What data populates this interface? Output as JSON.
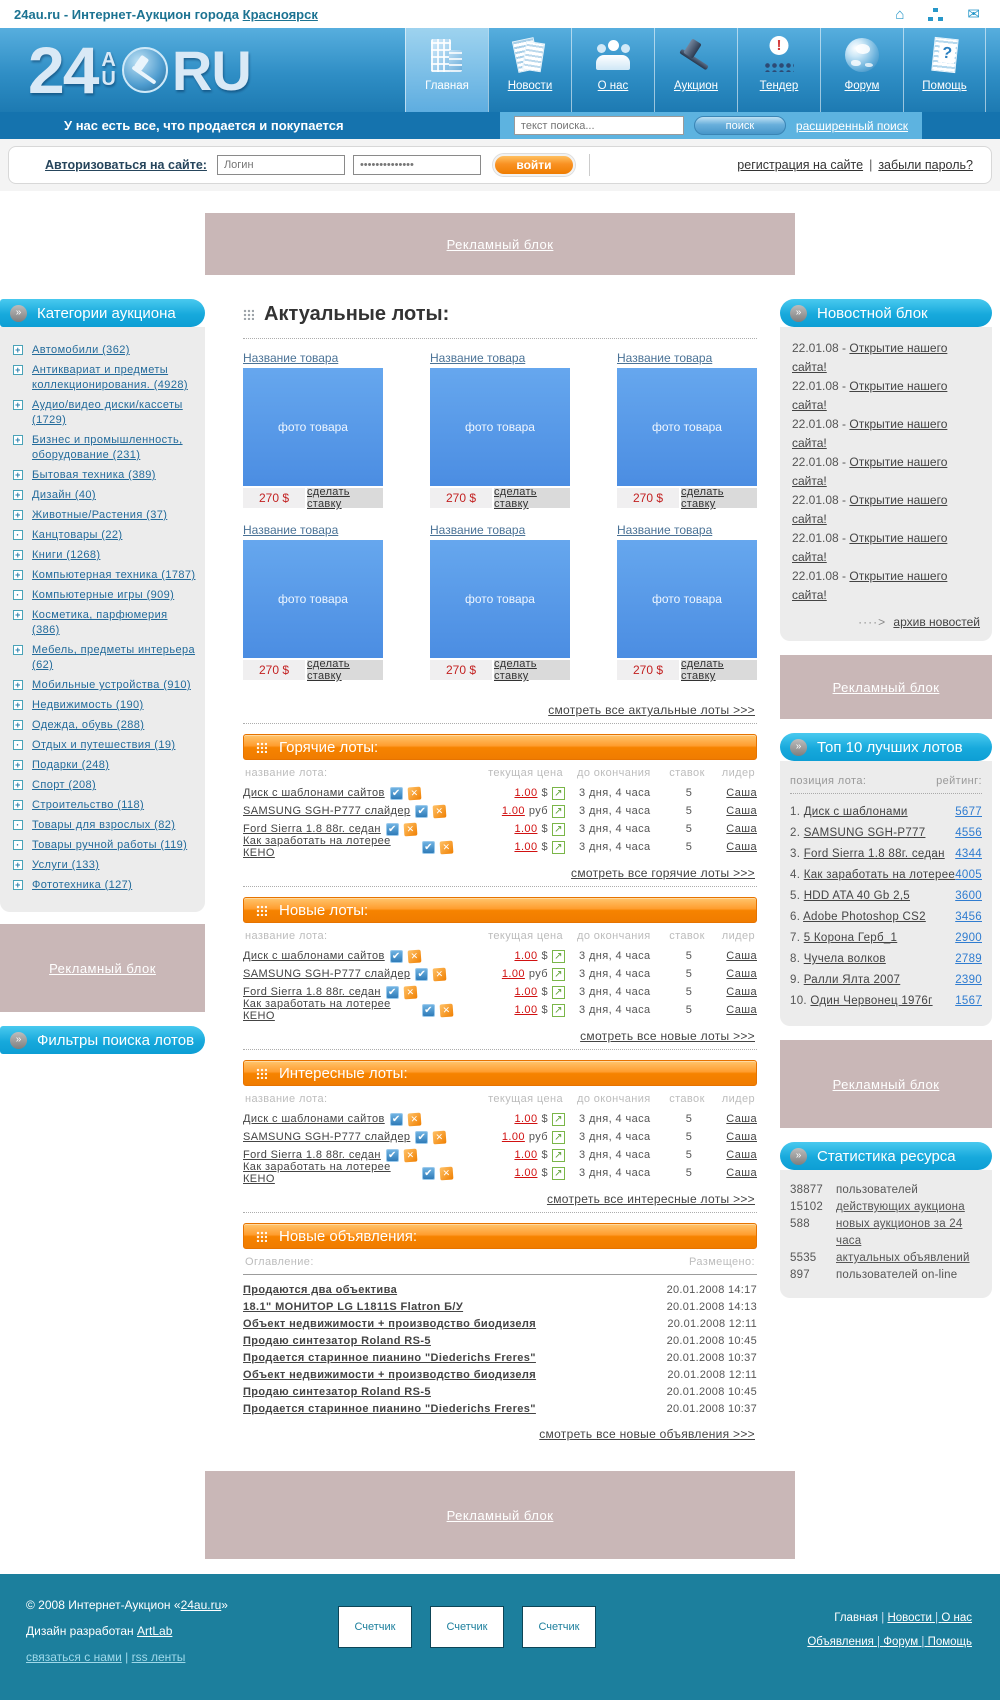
{
  "topbar": {
    "title_prefix": "24au.ru - Интернет-Аукцион города ",
    "title_link": "Красноярск"
  },
  "header": {
    "logo": {
      "big": "24",
      "small_top": "A",
      "small_bottom": "U",
      "suffix": "RU"
    },
    "nav": [
      {
        "label": "Главная",
        "icon": "building",
        "active": true
      },
      {
        "label": "Новости",
        "icon": "news"
      },
      {
        "label": "О нас",
        "icon": "people"
      },
      {
        "label": "Аукцион",
        "icon": "gavel"
      },
      {
        "label": "Тендер",
        "icon": "tender"
      },
      {
        "label": "Форум",
        "icon": "globe"
      },
      {
        "label": "Помощь",
        "icon": "help"
      }
    ],
    "tagline": "У нас есть все, что продается и покупается",
    "search": {
      "placeholder": "текст поиска...",
      "button": "поиск",
      "advanced": "расширенный поиск"
    }
  },
  "login": {
    "label": "Авторизоваться на сайте:",
    "login_placeholder": "Логин",
    "password_value": "**************",
    "submit": "войти",
    "register": "регистрация на сайте",
    "separator": "|",
    "forgot": "забыли пароль?"
  },
  "ads": {
    "label": "Рекламный блок"
  },
  "sidebar": {
    "categories_title": "Категории аукциона",
    "categories": [
      {
        "label": "Автомобили (362)",
        "glyph": "+"
      },
      {
        "label": "Антиквариат и предметы коллекционирования. (4928)",
        "glyph": "+"
      },
      {
        "label": "Аудио/видео диски/кассеты (1729)",
        "glyph": "+"
      },
      {
        "label": "Бизнес и промышленность, оборудование (231)",
        "glyph": "+"
      },
      {
        "label": "Бытовая техника (389)",
        "glyph": "+"
      },
      {
        "label": "Дизайн (40)",
        "glyph": "+"
      },
      {
        "label": "Животные/Растения (37)",
        "glyph": "+"
      },
      {
        "label": "Канцтовары (22)",
        "glyph": "·"
      },
      {
        "label": "Книги (1268)",
        "glyph": "+"
      },
      {
        "label": "Компьютерная техника (1787)",
        "glyph": "+"
      },
      {
        "label": "Компьютерные игры (909)",
        "glyph": "·"
      },
      {
        "label": "Косметика, парфюмерия (386)",
        "glyph": "+"
      },
      {
        "label": "Мебель, предметы интерьера (62)",
        "glyph": "+"
      },
      {
        "label": "Мобильные устройства (910)",
        "glyph": "+"
      },
      {
        "label": "Недвижимость (190)",
        "glyph": "+"
      },
      {
        "label": "Одежда, обувь (288)",
        "glyph": "+"
      },
      {
        "label": "Отдых и путешествия (19)",
        "glyph": "·"
      },
      {
        "label": "Подарки (248)",
        "glyph": "+"
      },
      {
        "label": "Спорт (208)",
        "glyph": "+"
      },
      {
        "label": "Строительство (118)",
        "glyph": "+"
      },
      {
        "label": "Товары для взрослых (82)",
        "glyph": "·"
      },
      {
        "label": "Товары ручной работы (119)",
        "glyph": "·"
      },
      {
        "label": "Услуги (133)",
        "glyph": "+"
      },
      {
        "label": "Фототехника (127)",
        "glyph": "+"
      }
    ],
    "filters_title": "Фильтры поиска лотов"
  },
  "main": {
    "title": "Актуальные лоты:",
    "cards": [
      {
        "name": "Название товара",
        "photo": "фото товара",
        "price": "270 $",
        "bid": "сделать ставку"
      },
      {
        "name": "Название товара",
        "photo": "фото товара",
        "price": "270 $",
        "bid": "сделать ставку"
      },
      {
        "name": "Название товара",
        "photo": "фото товара",
        "price": "270 $",
        "bid": "сделать ставку"
      },
      {
        "name": "Название товара",
        "photo": "фото товара",
        "price": "270 $",
        "bid": "сделать ставку"
      },
      {
        "name": "Название товара",
        "photo": "фото товара",
        "price": "270 $",
        "bid": "сделать ставку"
      },
      {
        "name": "Название товара",
        "photo": "фото товара",
        "price": "270 $",
        "bid": "сделать ставку"
      }
    ],
    "view_all_actual": "смотреть все актуальные лоты >>>",
    "lot_columns": {
      "name": "название лота:",
      "price": "текущая цена",
      "time": "до окончания",
      "bids": "ставок",
      "leader": "лидер"
    },
    "tables": [
      {
        "title": "Горячие лоты:",
        "view_all": "смотреть все горячие лоты >>>",
        "rows": [
          {
            "name": "Диск с шаблонами сайтов",
            "price": "1.00",
            "currency": "$",
            "time": "3 дня, 4 часа",
            "bids": "5",
            "leader": "Саша"
          },
          {
            "name": "SAMSUNG SGH-P777 слайдер",
            "price": "1.00",
            "currency": "руб",
            "time": "3 дня, 4 часа",
            "bids": "5",
            "leader": "Саша"
          },
          {
            "name": "Ford Sierra 1.8 88г. седан",
            "price": "1.00",
            "currency": "$",
            "time": "3 дня, 4 часа",
            "bids": "5",
            "leader": "Саша"
          },
          {
            "name": "Как заработать на лотерее КЕНО",
            "price": "1.00",
            "currency": "$",
            "time": "3 дня, 4 часа",
            "bids": "5",
            "leader": "Саша"
          }
        ]
      },
      {
        "title": "Новые лоты:",
        "view_all": "смотреть все новые лоты >>>",
        "rows": [
          {
            "name": "Диск с шаблонами сайтов",
            "price": "1.00",
            "currency": "$",
            "time": "3 дня, 4 часа",
            "bids": "5",
            "leader": "Саша"
          },
          {
            "name": "SAMSUNG SGH-P777 слайдер",
            "price": "1.00",
            "currency": "руб",
            "time": "3 дня, 4 часа",
            "bids": "5",
            "leader": "Саша"
          },
          {
            "name": "Ford Sierra 1.8 88г. седан",
            "price": "1.00",
            "currency": "$",
            "time": "3 дня, 4 часа",
            "bids": "5",
            "leader": "Саша"
          },
          {
            "name": "Как заработать на лотерее КЕНО",
            "price": "1.00",
            "currency": "$",
            "time": "3 дня, 4 часа",
            "bids": "5",
            "leader": "Саша"
          }
        ]
      },
      {
        "title": "Интересные лоты:",
        "view_all": "смотреть все интересные лоты >>>",
        "rows": [
          {
            "name": "Диск с шаблонами сайтов",
            "price": "1.00",
            "currency": "$",
            "time": "3 дня, 4 часа",
            "bids": "5",
            "leader": "Саша"
          },
          {
            "name": "SAMSUNG SGH-P777 слайдер",
            "price": "1.00",
            "currency": "руб",
            "time": "3 дня, 4 часа",
            "bids": "5",
            "leader": "Саша"
          },
          {
            "name": "Ford Sierra 1.8 88г. седан",
            "price": "1.00",
            "currency": "$",
            "time": "3 дня, 4 часа",
            "bids": "5",
            "leader": "Саша"
          },
          {
            "name": "Как заработать на лотерее КЕНО",
            "price": "1.00",
            "currency": "$",
            "time": "3 дня, 4 часа",
            "bids": "5",
            "leader": "Саша"
          }
        ]
      }
    ],
    "announcements": {
      "title": "Новые объявления:",
      "col_title": "Оглавление:",
      "col_date": "Размещено:",
      "rows": [
        {
          "title": "Продаются два объектива",
          "date": "20.01.2008 14:17"
        },
        {
          "title": "18.1\" МОНИТОР LG L1811S Flatron Б/У",
          "date": "20.01.2008 14:13"
        },
        {
          "title": "Объект недвижимости + производство биодизеля",
          "date": "20.01.2008 12:11"
        },
        {
          "title": "Продаю синтезатор Roland RS-5",
          "date": "20.01.2008 10:45"
        },
        {
          "title": "Продается старинное пианино \"Diederichs Freres\"",
          "date": "20.01.2008 10:37"
        },
        {
          "title": "Объект недвижимости + производство биодизеля",
          "date": "20.01.2008 12:11"
        },
        {
          "title": "Продаю синтезатор Roland RS-5",
          "date": "20.01.2008 10:45"
        },
        {
          "title": "Продается старинное пианино \"Diederichs Freres\"",
          "date": "20.01.2008 10:37"
        }
      ],
      "view_all": "смотреть все новые объявления >>>"
    }
  },
  "right": {
    "news": {
      "title": "Новостной блок",
      "items": [
        {
          "date": "22.01.08 -",
          "link": "Открытие нашего сайта!"
        },
        {
          "date": "22.01.08 -",
          "link": "Открытие нашего сайта!"
        },
        {
          "date": "22.01.08 -",
          "link": "Открытие нашего сайта!"
        },
        {
          "date": "22.01.08 -",
          "link": "Открытие нашего сайта!"
        },
        {
          "date": "22.01.08 -",
          "link": "Открытие нашего сайта!"
        },
        {
          "date": "22.01.08 -",
          "link": "Открытие нашего сайта!"
        },
        {
          "date": "22.01.08 -",
          "link": "Открытие нашего сайта!"
        }
      ],
      "archive_arrow": "····>",
      "archive": "архив новостей"
    },
    "top10": {
      "title": "Топ 10 лучших лотов",
      "col_name": "позиция лота:",
      "col_rating": "рейтинг:",
      "items": [
        {
          "num": "1.",
          "name": "Диск с шаблонами",
          "rating": "5677"
        },
        {
          "num": "2.",
          "name": "SAMSUNG SGH-P777",
          "rating": "4556"
        },
        {
          "num": "3.",
          "name": "Ford Sierra 1.8 88г. седан",
          "rating": "4344"
        },
        {
          "num": "4.",
          "name": "Как заработать на лотерее",
          "rating": "4005"
        },
        {
          "num": "5.",
          "name": "HDD ATA 40 Gb 2,5",
          "rating": "3600"
        },
        {
          "num": "6.",
          "name": "Adobe Photoshop CS2",
          "rating": "3456"
        },
        {
          "num": "7.",
          "name": "5 Корона Герб_1",
          "rating": "2900"
        },
        {
          "num": "8.",
          "name": "Чучела волков",
          "rating": "2789"
        },
        {
          "num": "9.",
          "name": "Ралли Ялта 2007",
          "rating": "2390"
        },
        {
          "num": "10.",
          "name": "Один Червонец 1976г",
          "rating": "1567"
        }
      ]
    },
    "stats": {
      "title": "Статистика ресурса",
      "items": [
        {
          "value": "38877",
          "label": "пользователей",
          "style": "plain"
        },
        {
          "value": "15102",
          "label": "действующих аукциона",
          "style": "link"
        },
        {
          "value": "588",
          "label": "новых аукционов за 24 часа",
          "style": "link"
        },
        {
          "value": "5535",
          "label": "актуальных объявлений",
          "style": "link"
        },
        {
          "value": "897",
          "label": "пользователей on-line",
          "style": "plain"
        }
      ]
    }
  },
  "footer": {
    "copyright_prefix": "© 2008 Интернет-Аукцион «",
    "copyright_link": "24au.ru",
    "copyright_suffix": "»",
    "design_prefix": "Дизайн разработан ",
    "design_link": "ArtLab",
    "contact": "связаться с нами",
    "separator": "|",
    "rss": "rss ленты",
    "counters": [
      {
        "label": "Счетчик"
      },
      {
        "label": "Счетчик"
      },
      {
        "label": "Счетчик"
      }
    ],
    "nav_line1": [
      {
        "label": "Главная",
        "style": "plain"
      },
      {
        "label": "Новости",
        "style": "u"
      },
      {
        "label": "О нас",
        "style": "u"
      }
    ],
    "nav_line2": [
      {
        "label": "Объявления",
        "style": "u"
      },
      {
        "label": "Форум",
        "style": "u"
      },
      {
        "label": "Помощь",
        "style": "u"
      }
    ]
  },
  "colors": {
    "header_blue": "#2f8ec5",
    "accent_cyan": "#17a9dc",
    "accent_orange": "#f68300",
    "ad_pink": "#c9b7b7",
    "footer_teal": "#1c7f9d",
    "price_red": "#d11111",
    "link_blue": "#2f7cd0",
    "photo_blue": "#4b8de2"
  }
}
